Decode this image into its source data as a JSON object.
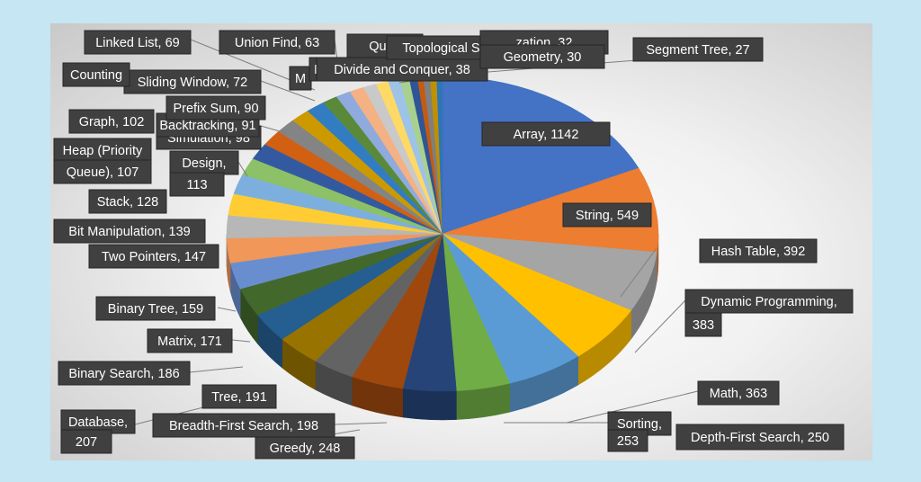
{
  "chart_data": {
    "type": "pie",
    "title": "",
    "slices": [
      {
        "label": "Array",
        "value": 1142,
        "color": "#4472c4"
      },
      {
        "label": "String",
        "value": 549,
        "color": "#ed7d31"
      },
      {
        "label": "Hash Table",
        "value": 392,
        "color": "#a5a5a5"
      },
      {
        "label": "Dynamic Programming",
        "value": 383,
        "color": "#ffc000"
      },
      {
        "label": "Math",
        "value": 363,
        "color": "#5b9bd5"
      },
      {
        "label": "Sorting",
        "value": 253,
        "color": "#70ad47"
      },
      {
        "label": "Depth-First Search",
        "value": 250,
        "color": "#264478"
      },
      {
        "label": "Greedy",
        "value": 248,
        "color": "#9e480e"
      },
      {
        "label": "Breadth-First Search",
        "value": 198,
        "color": "#636363"
      },
      {
        "label": "Database",
        "value": 207,
        "color": "#997300"
      },
      {
        "label": "Tree",
        "value": 191,
        "color": "#255e91"
      },
      {
        "label": "Binary Search",
        "value": 186,
        "color": "#43682b"
      },
      {
        "label": "Matrix",
        "value": 171,
        "color": "#698ed0"
      },
      {
        "label": "Binary Tree",
        "value": 159,
        "color": "#f1975a"
      },
      {
        "label": "Two Pointers",
        "value": 147,
        "color": "#b7b7b7"
      },
      {
        "label": "Bit Manipulation",
        "value": 139,
        "color": "#ffcd33"
      },
      {
        "label": "Stack",
        "value": 128,
        "color": "#7cafdd"
      },
      {
        "label": "Design",
        "value": 113,
        "color": "#8cc168"
      },
      {
        "label": "Heap (Priority Queue)",
        "value": 107,
        "color": "#335aa1"
      },
      {
        "label": "Graph",
        "value": 102,
        "color": "#d26012"
      },
      {
        "label": "Simulation",
        "value": 98,
        "color": "#848484"
      },
      {
        "label": "Backtracking",
        "value": 91,
        "color": "#cc9a00"
      },
      {
        "label": "Prefix Sum",
        "value": 90,
        "color": "#327dc2"
      },
      {
        "label": "Sliding Window",
        "value": 72,
        "color": "#5a8a39"
      },
      {
        "label": "Counting",
        "value": 70,
        "color": "#8faadc"
      },
      {
        "label": "Linked List",
        "value": 69,
        "color": "#f4b183"
      },
      {
        "label": "Union Find",
        "value": 63,
        "color": "#c9c9c9"
      },
      {
        "label": "M",
        "value": 58,
        "color": "#ffd966"
      },
      {
        "label": "E",
        "value": 55,
        "color": "#9dc3e6"
      },
      {
        "label": "Queu",
        "value": 44,
        "color": "#a9d18e"
      },
      {
        "label": "Divide and Conquer",
        "value": 38,
        "color": "#2f5597"
      },
      {
        "label": "Topological Sort",
        "value": 28,
        "color": "#c55a11"
      },
      {
        "label": "zation, 32",
        "value": 32,
        "color": "#7f7f7f"
      },
      {
        "label": "Geometry",
        "value": 30,
        "color": "#bf9000"
      },
      {
        "label": "Segment Tree",
        "value": 27,
        "color": "#2e75b6"
      }
    ],
    "labels": [
      {
        "text": "Array, 1142"
      },
      {
        "text": "String, 549"
      },
      {
        "text": "Hash Table, 392"
      },
      {
        "text": "Dynamic Programming,"
      },
      {
        "text": "383"
      },
      {
        "text": "Math, 363"
      },
      {
        "text": "Sorting,"
      },
      {
        "text": "253"
      },
      {
        "text": "Depth-First Search, 250"
      },
      {
        "text": "Greedy, 248"
      },
      {
        "text": "Breadth-First Search, 198"
      },
      {
        "text": "Database,"
      },
      {
        "text": "207"
      },
      {
        "text": "Tree, 191"
      },
      {
        "text": "Binary Search, 186"
      },
      {
        "text": "Matrix, 171"
      },
      {
        "text": "Binary Tree, 159"
      },
      {
        "text": "Two Pointers, 147"
      },
      {
        "text": "Bit Manipulation, 139"
      },
      {
        "text": "Stack, 128"
      },
      {
        "text": "Design,"
      },
      {
        "text": "113"
      },
      {
        "text": "Heap (Priority"
      },
      {
        "text": "Queue), 107"
      },
      {
        "text": "Graph, 102"
      },
      {
        "text": "Simulation, 98"
      },
      {
        "text": "Backtracking, 91"
      },
      {
        "text": "Prefix Sum, 90"
      },
      {
        "text": "Sliding Window, 72"
      },
      {
        "text": "Counting"
      },
      {
        "text": "Linked List, 69"
      },
      {
        "text": "Union Find, 63"
      },
      {
        "text": "M"
      },
      {
        "text": "E"
      },
      {
        "text": "Queu"
      },
      {
        "text": "Divide and Conquer, 38"
      },
      {
        "text": "Topological Sort, 28"
      },
      {
        "text": "zation, 32"
      },
      {
        "text": "Geometry, 30"
      },
      {
        "text": "Segment Tree, 27"
      }
    ]
  }
}
